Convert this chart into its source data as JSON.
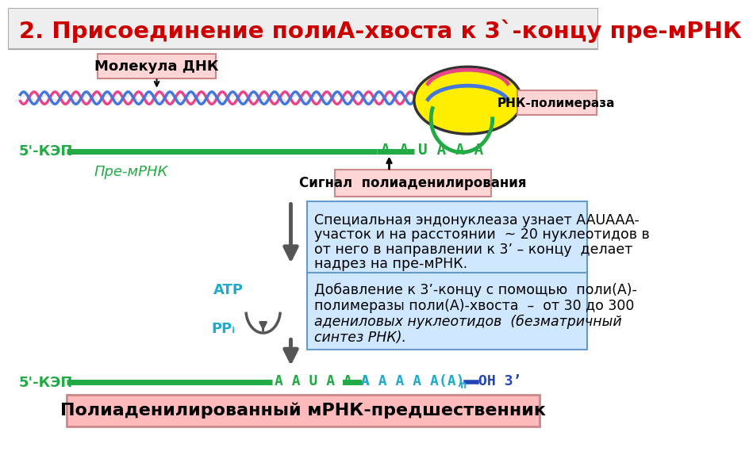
{
  "title": "2. Присоединение полиА-хвоста к 3`-концу пре-мРНК",
  "title_color": "#cc0000",
  "bg_color": "#ffffff",
  "dna_label": "Молекула ДНК",
  "rna_pol_label": "РНК-полимераза",
  "pre_mrna_label": "Пре-мРНК",
  "cap5_label": "5'-КЭП",
  "signal_label": "Сигнал  полиаденилирования",
  "aauaaa_label": "A A U A A A",
  "box1_line1": "Специальная эндонуклеаза узнает AAUAAA-",
  "box1_line2": "участок и на расстоянии  ~ 20 нуклеотидов в",
  "box1_line3": "от него в направлении к 3’ – концу  делает",
  "box1_line4": "надрез на пре-мРНК.",
  "box2_line1": "Добавление к 3’-концу с помощью  поли(А)-",
  "box2_line2": "полимеразы поли(А)-хвоста  –  от 30 до 300",
  "box2_line3": "адениловых нуклеотидов  (безматричный",
  "box2_line4": "синтез РНК).",
  "atp_label": "ATP",
  "ppi_label": "PPᵢ",
  "bottom_label": "Полиаденилированный мРНК-предшественник",
  "cap5_bottom": "5'-КЭП",
  "pink_color": "#e8448a",
  "blue_color": "#4477dd",
  "green_color": "#22aa44",
  "cyan_color": "#22aacc",
  "darkblue_color": "#2244bb"
}
